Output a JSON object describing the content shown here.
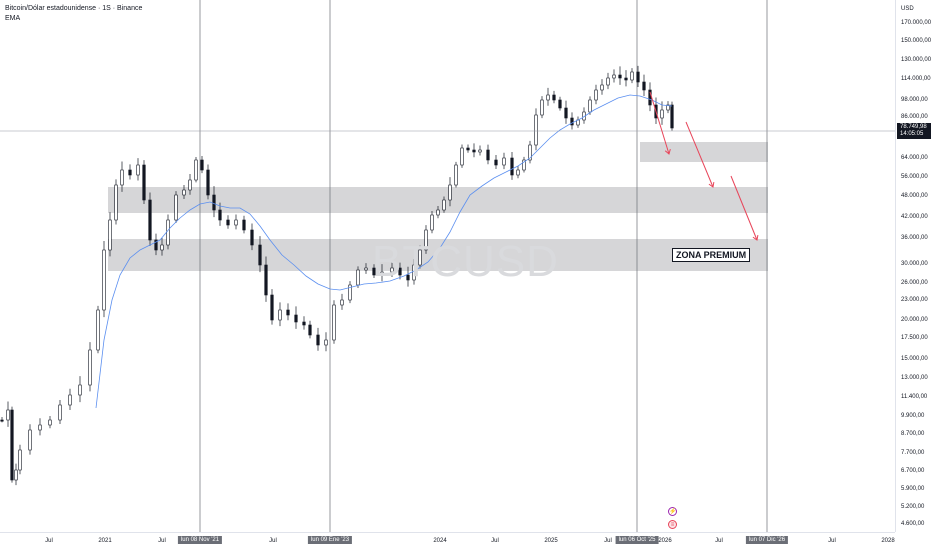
{
  "legend": {
    "title": "Bitcoin/Dólar estadounidense · 1S · Binance",
    "indicator": "EMA"
  },
  "watermark": "BTCUSD",
  "annotation": {
    "label": "ZONA PREMIUM"
  },
  "price_axis": {
    "currency": "USD",
    "labels": [
      "170.000,00",
      "150.000,00",
      "130.000,00",
      "114.000,00",
      "98.000,00",
      "86.000,00",
      "64.000,00",
      "56.000,00",
      "48.000,00",
      "42.000,00",
      "36.000,00",
      "30.000,00",
      "26.000,00",
      "23.000,00",
      "20.000,00",
      "17.500,00",
      "15.000,00",
      "13.000,00",
      "11.400,00",
      "9.900,00",
      "8.700,00",
      "7.700,00",
      "6.700,00",
      "5.900,00",
      "5.200,00",
      "4.600,00"
    ],
    "current_price": "78.749,98",
    "countdown": "14:05:05"
  },
  "time_axis": {
    "labels": [
      "Jul",
      "2021",
      "Jul",
      "Jul",
      "2024",
      "Jul",
      "2025",
      "Jul",
      "2026",
      "Jul",
      "Jul",
      "2028"
    ],
    "highlighted": [
      "lun 08 Nov '21",
      "lun 09 Ene '23",
      "lun 06 Oct '25",
      "lun 07 Dic '26"
    ]
  },
  "colors": {
    "up": "#131722",
    "down": "#131722",
    "ema": "#5b8ff0",
    "zone": "#d6d6d8",
    "arrow": "#e8455a",
    "vline": "#6b6e76"
  },
  "icons": [
    "lightning-icon",
    "flag-us-icon"
  ]
}
